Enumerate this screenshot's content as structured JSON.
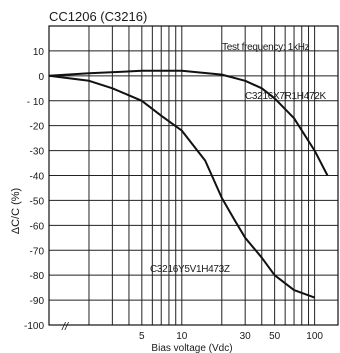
{
  "chart_data": {
    "type": "line",
    "title": "CC1206 (C3216)",
    "xlabel": "Bias voltage (Vdc)",
    "ylabel": "ΔC/C (%)",
    "x_scale": "log",
    "xlim": [
      1,
      150
    ],
    "ylim": [
      -100,
      20
    ],
    "x_ticks": [
      {
        "value": 5,
        "label": "5"
      },
      {
        "value": 10,
        "label": "10"
      },
      {
        "value": 30,
        "label": "30"
      },
      {
        "value": 50,
        "label": "50"
      },
      {
        "value": 100,
        "label": "100"
      }
    ],
    "y_ticks": [
      10,
      0,
      -10,
      -20,
      -30,
      -40,
      -50,
      -60,
      -70,
      -80,
      -90,
      -100
    ],
    "y_tick_labels": [
      "10",
      "0",
      "- 10",
      "-20",
      "-30",
      "-40",
      "-50",
      "-60",
      "-70",
      "-80",
      "-90",
      "-100"
    ],
    "axis_break_label": "//",
    "grid": true,
    "annotation": "Test frequency: 1kHz",
    "series": [
      {
        "name": "C3216X7R1H472K",
        "x": [
          1,
          2,
          5,
          10,
          20,
          30,
          40,
          50,
          70,
          100,
          125
        ],
        "y": [
          0,
          1,
          2,
          2,
          0.5,
          -2,
          -5,
          -9,
          -17,
          -30,
          -40
        ]
      },
      {
        "name": "C3216Y5V1H473Z",
        "x": [
          1,
          2,
          3,
          5,
          7,
          10,
          15,
          20,
          25,
          30,
          40,
          50,
          70,
          100
        ],
        "y": [
          0,
          -2,
          -5,
          -10,
          -16,
          -22,
          -34,
          -49,
          -58,
          -65,
          -73,
          -80,
          -86,
          -89
        ]
      }
    ]
  }
}
